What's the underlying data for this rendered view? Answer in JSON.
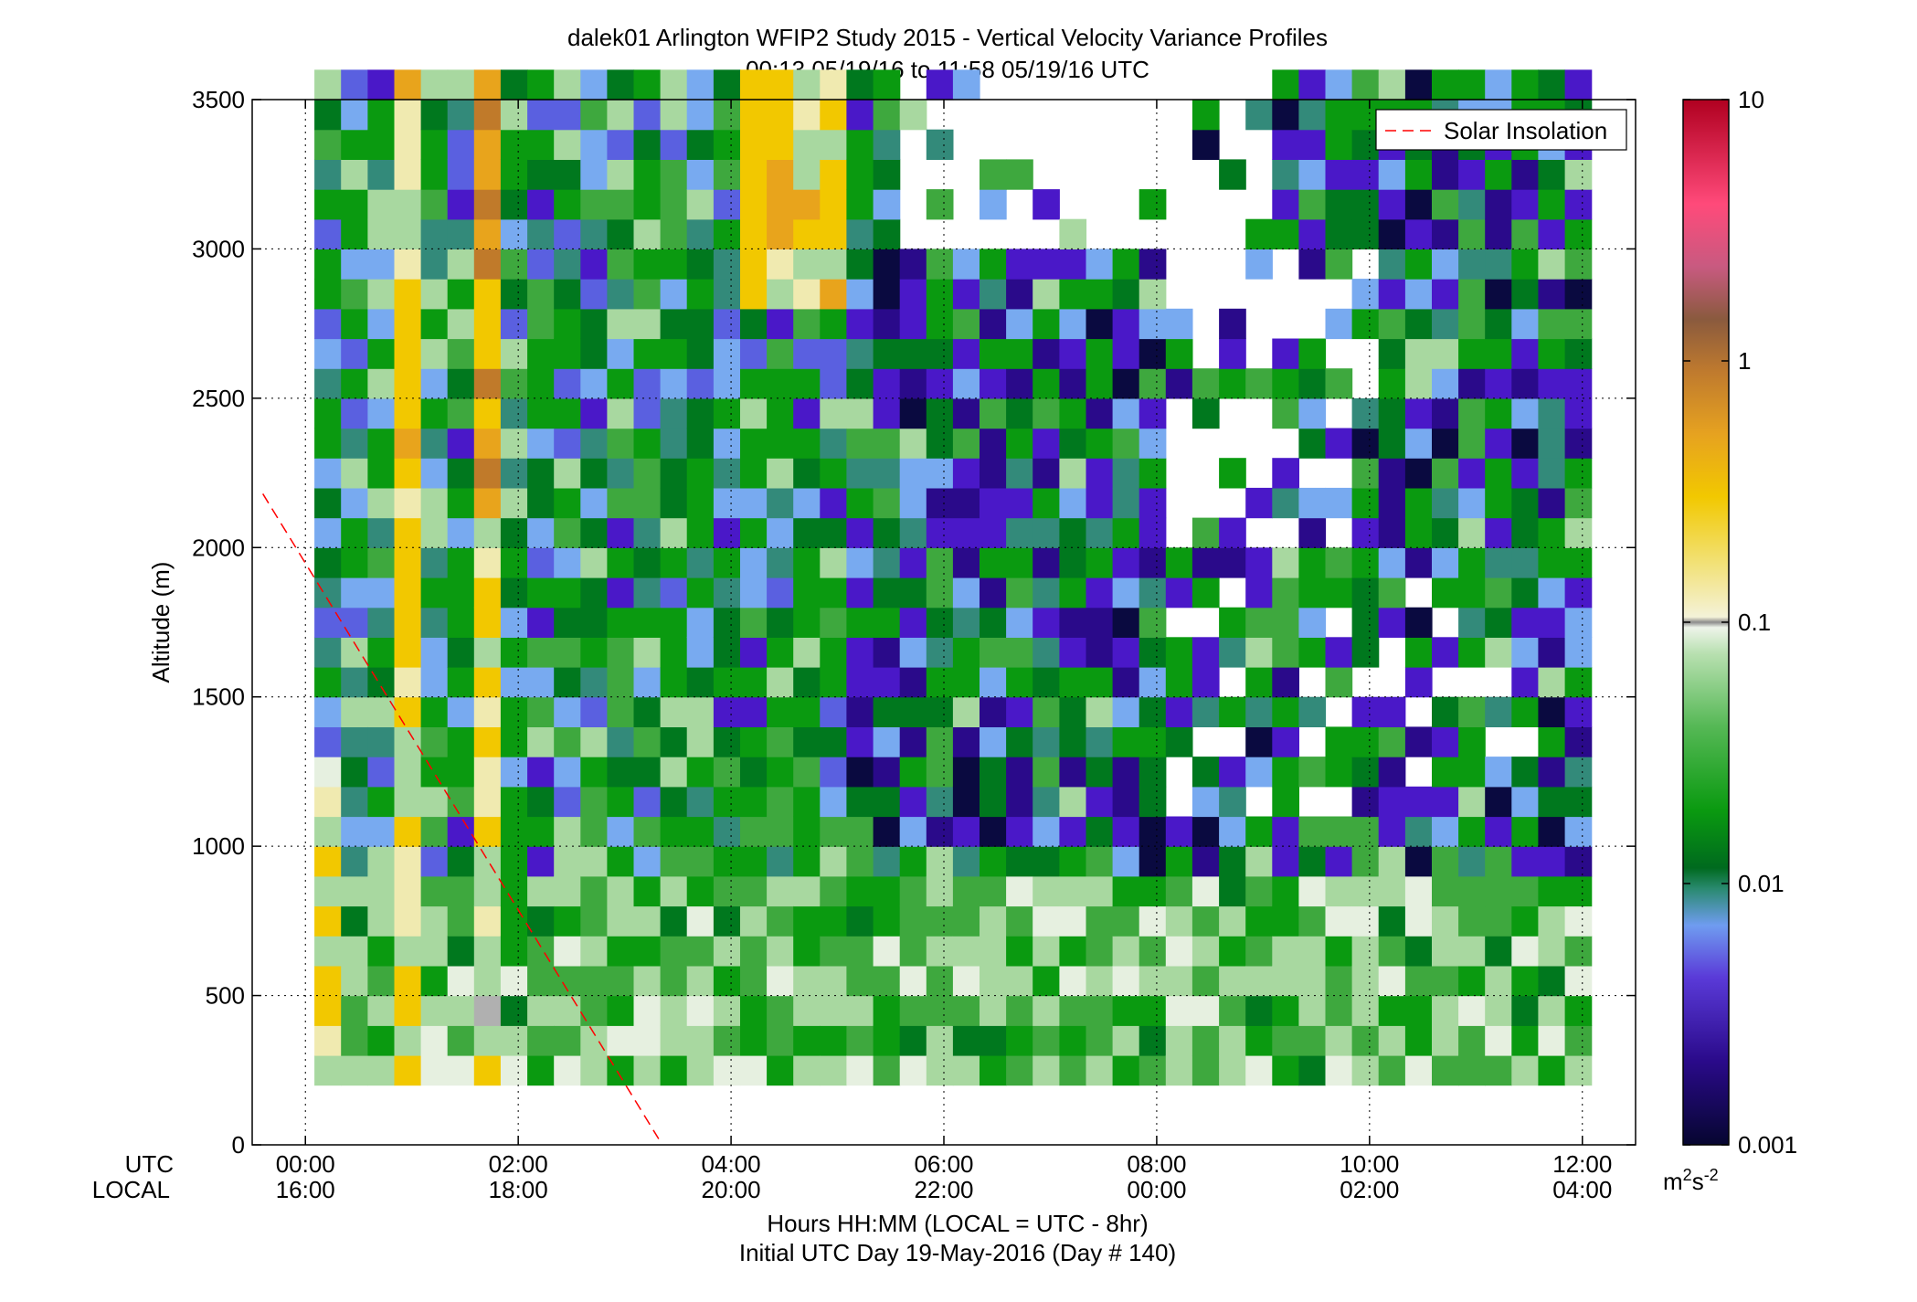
{
  "chart_data": {
    "type": "heatmap",
    "title": "dalek01 Arlington WFIP2 Study 2015 - Vertical Velocity Variance Profiles",
    "subtitle": "00:13 05/19/16 to 11:58 05/19/16  UTC",
    "ylabel": "Altitude (m)",
    "xlabel": "Hours HH:MM  (LOCAL = UTC - 8hr)",
    "xlabel2": "Initial UTC Day 19-May-2016 (Day # 140)",
    "x_row_labels": [
      "UTC",
      "LOCAL"
    ],
    "xlim_hours": [
      -0.5,
      12.5
    ],
    "ylim": [
      0,
      3500
    ],
    "x_ticks_utc": [
      "00:00",
      "02:00",
      "04:00",
      "06:00",
      "08:00",
      "10:00",
      "12:00"
    ],
    "x_ticks_local": [
      "16:00",
      "18:00",
      "20:00",
      "22:00",
      "00:00",
      "02:00",
      "04:00"
    ],
    "x_tick_hours": [
      0,
      2,
      4,
      6,
      8,
      10,
      12
    ],
    "y_ticks": [
      "0",
      "500",
      "1000",
      "1500",
      "2000",
      "2500",
      "3000",
      "3500"
    ],
    "y_tick_values": [
      0,
      500,
      1000,
      1500,
      2000,
      2500,
      3000,
      3500
    ],
    "grid": true,
    "legend": {
      "position": "top-right",
      "entries": [
        "Solar Insolation"
      ]
    },
    "solar_insolation_line": {
      "x_hours": [
        -0.4,
        3.32
      ],
      "y": [
        2180,
        20
      ],
      "color": "#ff0000",
      "style": "dashed"
    },
    "colorbar": {
      "scale": "log",
      "range": [
        0.001,
        10
      ],
      "tick_labels": [
        "0.001",
        "0.01",
        "0.1",
        "1",
        "10"
      ],
      "tick_values": [
        0.001,
        0.01,
        0.1,
        1,
        10
      ],
      "unit": "m",
      "unit_sup": "2",
      "unit_rest": "s",
      "unit_sup2": "-2"
    },
    "grid_dims": {
      "time_start_hours": 0.21,
      "time_step_hours": 0.25,
      "columns": 48,
      "altitude_start_m": 200,
      "altitude_step_m": 100,
      "rows": 34
    },
    "colors": {
      "yellow": "#f2c800",
      "orange": "#e8a41c",
      "brown": "#c07a2a",
      "pale": "#f0eab0",
      "white_green": "#e6f0e0",
      "light_green": "#a8d8a0",
      "mid_green": "#3ea83e",
      "green": "#0a9a10",
      "dark_green": "#00781e",
      "teal": "#338a7a",
      "light_blue": "#78aaf0",
      "blue": "#5a60e0",
      "purple": "#4a18c8",
      "dark_purple": "#2a0a8a",
      "navy": "#0a0a40",
      "gray": "#b0b0b0",
      "missing": "#ffffff"
    }
  }
}
